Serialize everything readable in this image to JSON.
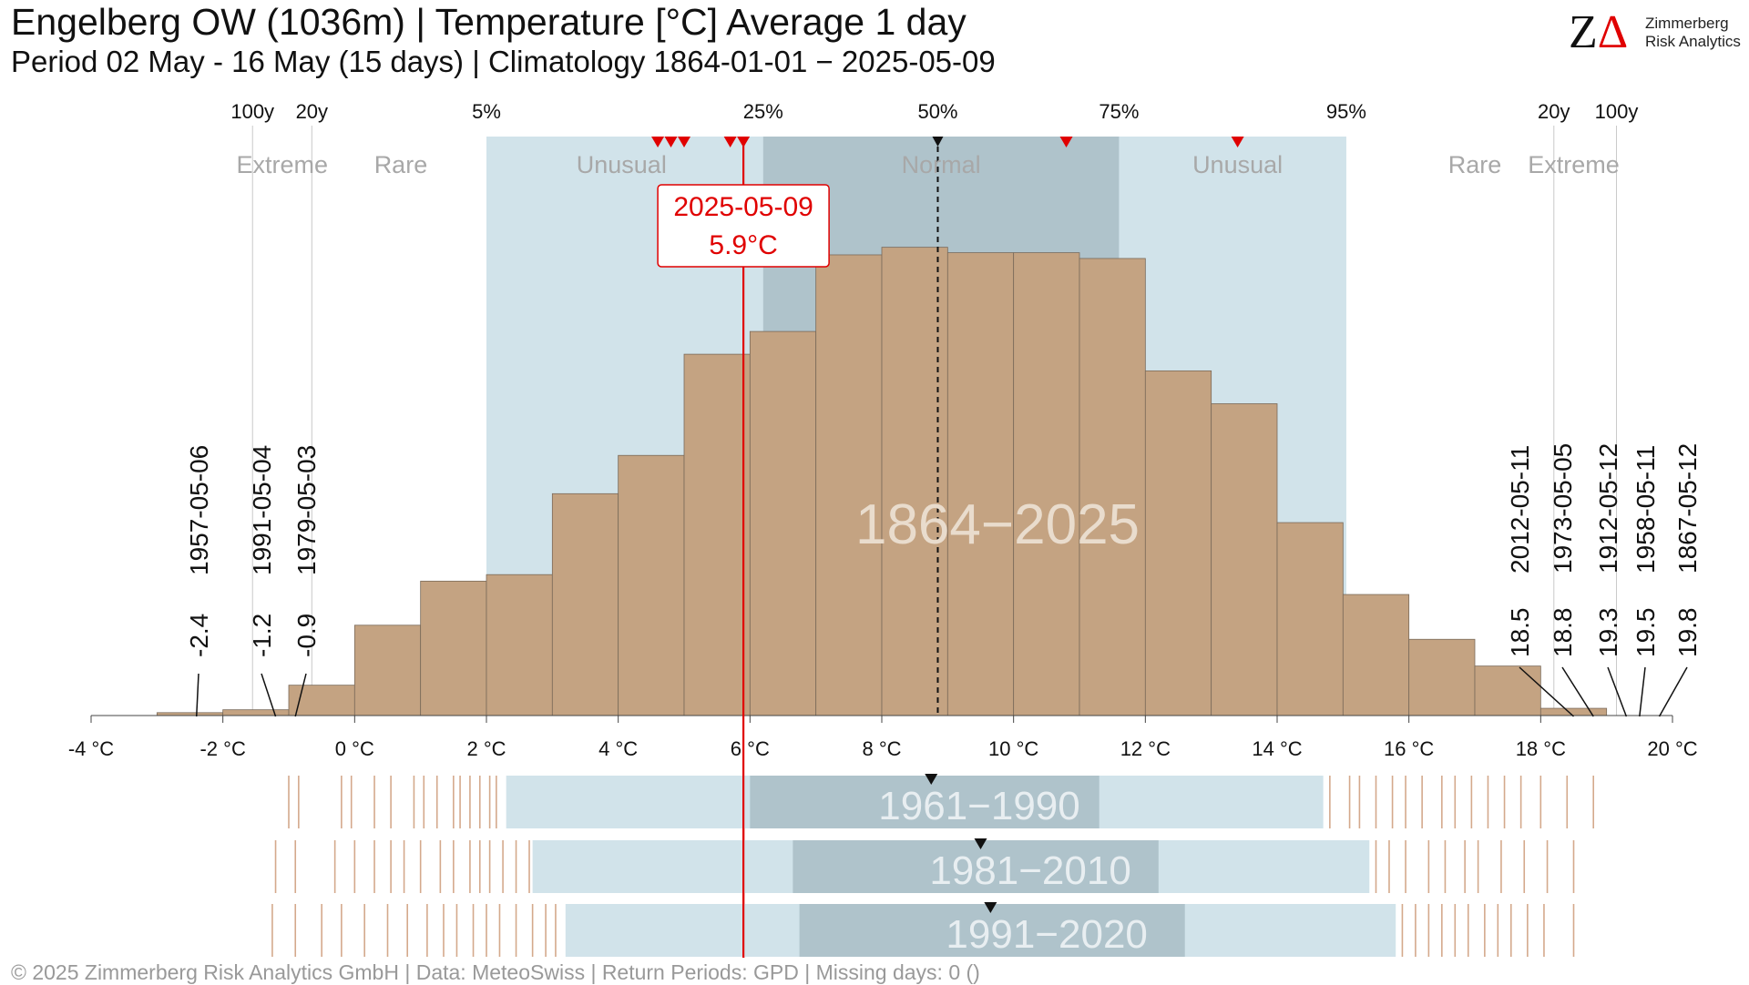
{
  "header": {
    "title": "Engelberg  OW (1036m) | Temperature [°C] Average 1 day",
    "subtitle": "Period 02 May - 16 May (15 days) | Climatology 1864-01-01 − 2025-05-09"
  },
  "logo": {
    "mark_z": "Z",
    "mark_delta": "Δ",
    "line1": "Zimmerberg",
    "line2": "Risk Analytics"
  },
  "footer": {
    "text": "©  2025 Zimmerberg Risk Analytics GmbH | Data: MeteoSwiss | Return Periods: GPD | Missing days: 0 ()"
  },
  "colors": {
    "histogram": "#c4a382",
    "band_light": "#d1e3ea",
    "band_dark": "#afc3cb",
    "highlight": "#e00000",
    "label_gray": "#a8a8a8"
  },
  "chart_data": {
    "type": "bar",
    "xlim": [
      -4,
      20
    ],
    "x_ticks": [
      -4,
      -2,
      0,
      2,
      4,
      6,
      8,
      10,
      12,
      14,
      16,
      18,
      20
    ],
    "x_tick_labels": [
      "-4 °C",
      "-2 °C",
      "0 °C",
      "2 °C",
      "4 °C",
      "6 °C",
      "8 °C",
      "10 °C",
      "12 °C",
      "14 °C",
      "16 °C",
      "18 °C",
      "20 °C"
    ],
    "histogram": {
      "label": "1864−2025",
      "bins": [
        [
          -3,
          -2,
          0.8
        ],
        [
          -2,
          -1,
          1.6
        ],
        [
          -1,
          0,
          8.4
        ],
        [
          0,
          1,
          25.0
        ],
        [
          1,
          2,
          37.2
        ],
        [
          2,
          3,
          39.0
        ],
        [
          3,
          4,
          61.4
        ],
        [
          4,
          5,
          72.0
        ],
        [
          5,
          6,
          100.0
        ],
        [
          6,
          7,
          106.3
        ],
        [
          7,
          8,
          127.5
        ],
        [
          8,
          9,
          129.6
        ],
        [
          9,
          10,
          128.1
        ],
        [
          10,
          11,
          128.1
        ],
        [
          11,
          12,
          126.5
        ],
        [
          12,
          13,
          95.4
        ],
        [
          13,
          14,
          86.3
        ],
        [
          14,
          15,
          53.4
        ],
        [
          15,
          16,
          33.5
        ],
        [
          16,
          17,
          21.1
        ],
        [
          17,
          18,
          13.7
        ],
        [
          18,
          19,
          2.0
        ]
      ]
    },
    "percentiles": [
      {
        "label": "5%",
        "value": 2.0
      },
      {
        "label": "25%",
        "value": 6.2
      },
      {
        "label": "50%",
        "value": 8.85
      },
      {
        "label": "75%",
        "value": 11.6
      },
      {
        "label": "95%",
        "value": 15.05
      }
    ],
    "return_periods": [
      {
        "label": "100y",
        "value": -1.55
      },
      {
        "label": "20y",
        "value": -0.65
      },
      {
        "label": "20y",
        "value": 18.2
      },
      {
        "label": "100y",
        "value": 19.15
      }
    ],
    "zones": [
      {
        "label": "Extreme",
        "center": -1.1
      },
      {
        "label": "Rare",
        "center": 0.7
      },
      {
        "label": "Unusual",
        "center": 4.05
      },
      {
        "label": "Normal",
        "center": 8.9
      },
      {
        "label": "Unusual",
        "center": 13.4
      },
      {
        "label": "Rare",
        "center": 17.0
      },
      {
        "label": "Extreme",
        "center": 18.5
      }
    ],
    "recent_markers": [
      4.6,
      4.8,
      5.0,
      5.7,
      5.9,
      10.8,
      13.4
    ],
    "median_marker": 8.85,
    "highlight": {
      "date": "2025-05-09",
      "value_label": "5.9°C",
      "value": 5.9
    },
    "extremes_low": [
      {
        "date": "1957-05-06",
        "value": -2.4,
        "label": "-2.4"
      },
      {
        "date": "1991-05-04",
        "value": -1.2,
        "label": "-1.2"
      },
      {
        "date": "1979-05-03",
        "value": -0.9,
        "label": "-0.9"
      }
    ],
    "extremes_high": [
      {
        "date": "2012-05-11",
        "value": 18.5,
        "label": "18.5"
      },
      {
        "date": "1973-05-05",
        "value": 18.8,
        "label": "18.8"
      },
      {
        "date": "1912-05-12",
        "value": 19.3,
        "label": "19.3"
      },
      {
        "date": "1958-05-11",
        "value": 19.5,
        "label": "19.5"
      },
      {
        "date": "1867-05-12",
        "value": 19.8,
        "label": "19.8"
      }
    ],
    "periods": [
      {
        "label": "1961−1990",
        "p5": 2.3,
        "p25": 6.0,
        "p75": 11.3,
        "p95": 14.7,
        "median": 8.75,
        "obs": [
          -1.0,
          -0.85,
          -0.2,
          -0.05,
          0.3,
          0.55,
          0.9,
          1.05,
          1.25,
          1.5,
          1.6,
          1.75,
          1.9,
          2.05,
          2.15,
          14.8,
          15.1,
          15.25,
          15.5,
          15.75,
          15.95,
          16.2,
          16.5,
          16.7,
          16.95,
          17.2,
          17.45,
          17.7,
          18.0,
          18.4,
          18.8
        ]
      },
      {
        "label": "1981−2010",
        "p5": 2.7,
        "p25": 6.65,
        "p75": 12.2,
        "p95": 15.4,
        "median": 9.5,
        "obs": [
          -1.2,
          -0.9,
          -0.3,
          0.0,
          0.3,
          0.55,
          0.75,
          1.0,
          1.3,
          1.5,
          1.75,
          1.9,
          2.05,
          2.25,
          2.45,
          2.65,
          15.5,
          15.7,
          15.95,
          16.3,
          16.55,
          16.85,
          17.05,
          17.4,
          17.75,
          18.1,
          18.5
        ]
      },
      {
        "label": "1991−2020",
        "p5": 3.2,
        "p25": 6.75,
        "p75": 12.6,
        "p95": 15.8,
        "median": 9.65,
        "obs": [
          -1.25,
          -0.9,
          -0.5,
          -0.2,
          0.15,
          0.5,
          0.8,
          1.1,
          1.35,
          1.55,
          1.8,
          2.0,
          2.2,
          2.45,
          2.7,
          2.9,
          3.05,
          15.9,
          16.1,
          16.3,
          16.5,
          16.7,
          16.9,
          17.15,
          17.35,
          17.55,
          17.8,
          18.05,
          18.5
        ]
      }
    ]
  }
}
